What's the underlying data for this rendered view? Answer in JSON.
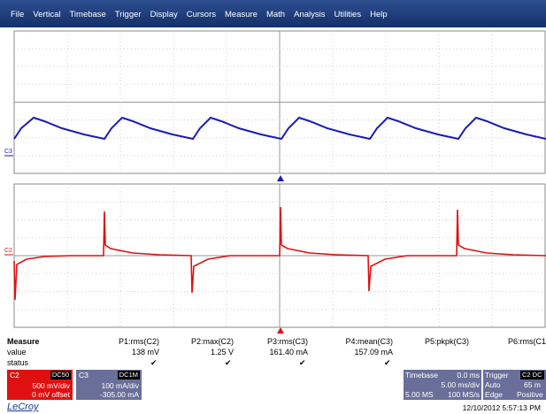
{
  "menu": [
    "File",
    "Vertical",
    "Timebase",
    "Trigger",
    "Display",
    "Cursors",
    "Measure",
    "Math",
    "Analysis",
    "Utilities",
    "Help"
  ],
  "traces": {
    "upper_label": "C3",
    "lower_label": "C2"
  },
  "measure": {
    "title": "Measure",
    "row_labels": [
      "value",
      "status"
    ],
    "columns": [
      {
        "name": "P1:rms(C2)",
        "value": "138 mV"
      },
      {
        "name": "P2:max(C2)",
        "value": "1.25 V"
      },
      {
        "name": "P3:rms(C3)",
        "value": "161.40 mA"
      },
      {
        "name": "P4:mean(C3)",
        "value": "157.09 mA"
      },
      {
        "name": "P5:pkpk(C3)"
      },
      {
        "name": "P6:rms(C1"
      }
    ]
  },
  "channel_boxes": [
    {
      "name": "C2",
      "coupling": "DC50",
      "scale": "500 mV/div",
      "offset": "0 mV offset"
    },
    {
      "name": "C3",
      "coupling": "DC1M",
      "scale": "100 mA/div",
      "offset": "-305.00 mA"
    }
  ],
  "timebase": {
    "title": "Timebase",
    "delay": "0.0 ms",
    "scale": "5.00 ms/div",
    "samples": "5.00 MS",
    "rate": "100 MS/s"
  },
  "trigger": {
    "title": "Trigger",
    "source": "C2 DC",
    "mode": "Auto",
    "level": "65 m",
    "type": "Edge",
    "slope": "Positive"
  },
  "footer": {
    "brand": "LeCroy",
    "timestamp": "12/10/2012 5:57:13 PM"
  }
}
